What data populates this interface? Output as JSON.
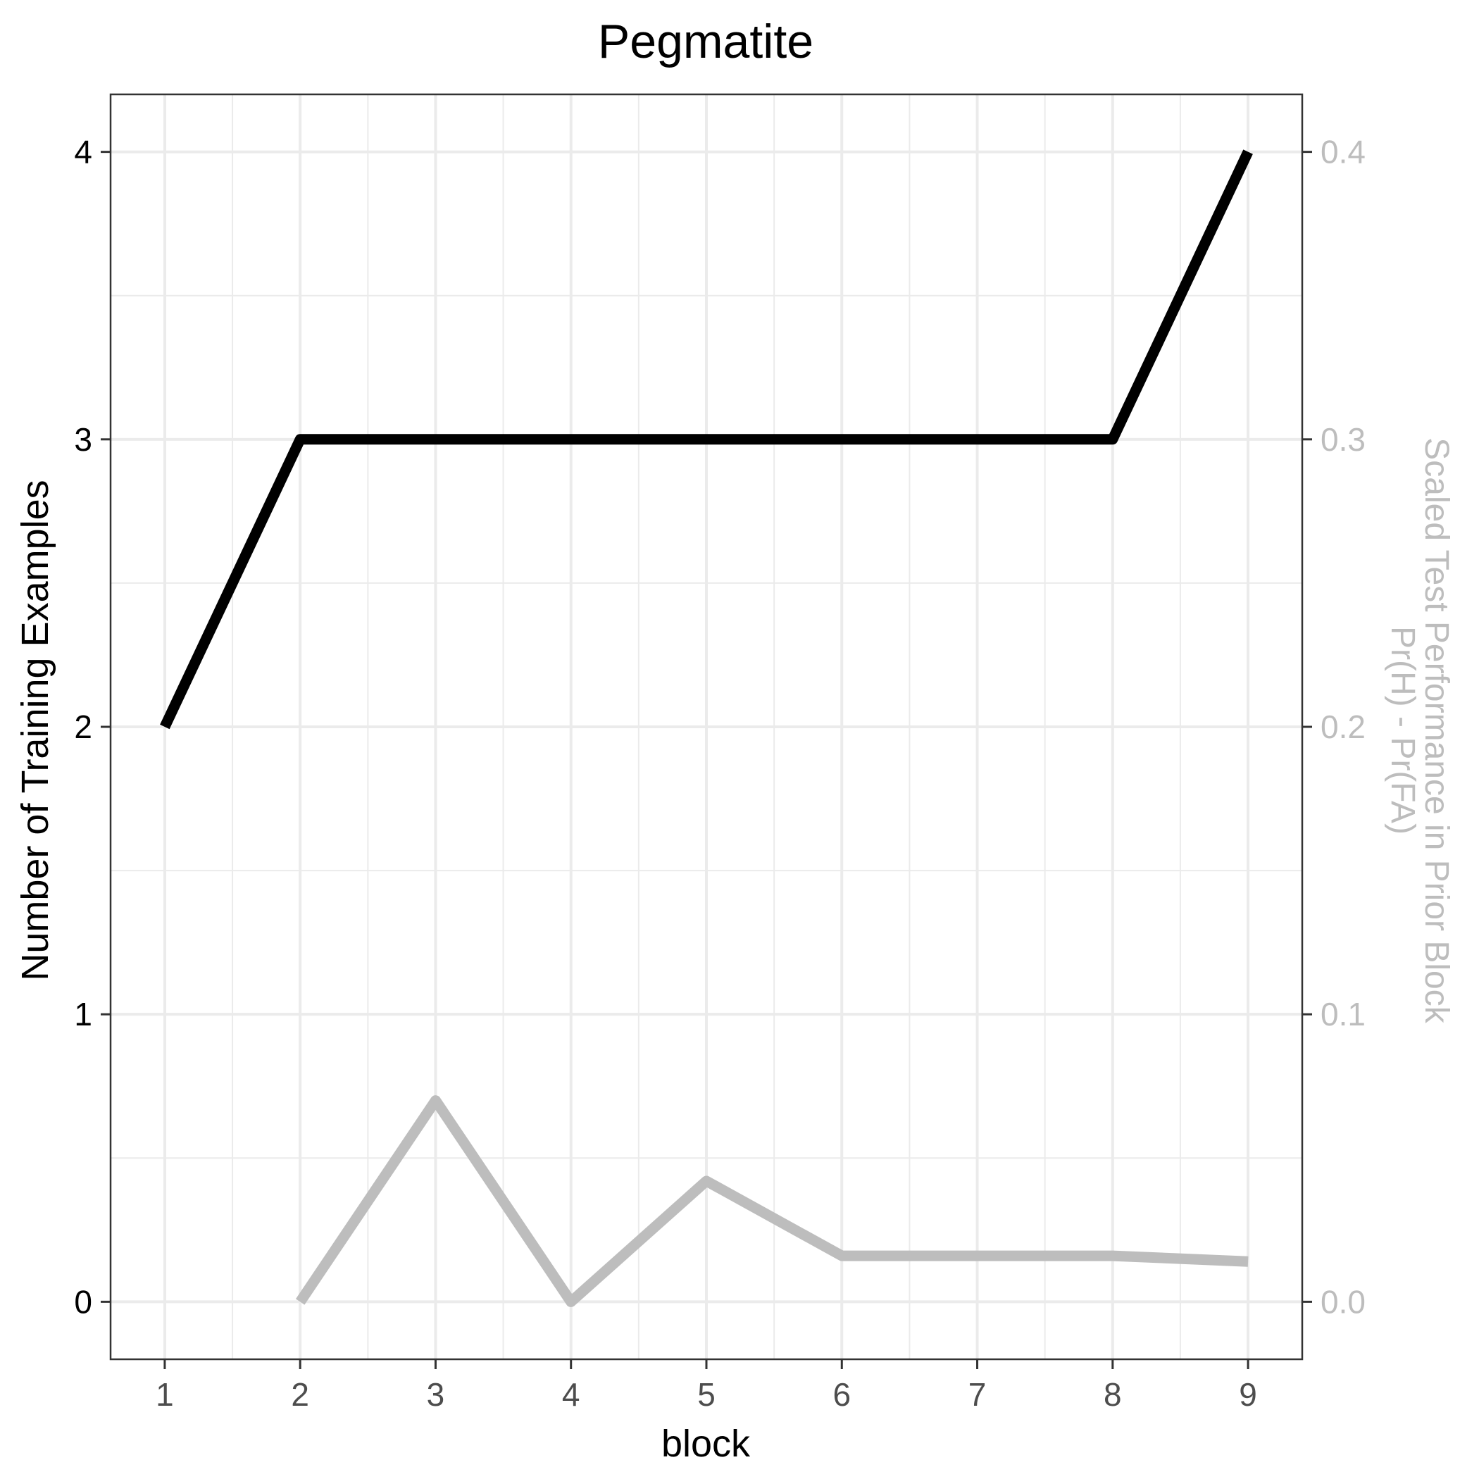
{
  "chart_data": {
    "type": "line",
    "title": "Pegmatite",
    "xlabel": "block",
    "ylabel": "Number of Training Examples",
    "ylabel_right": [
      "Scaled Test Performance in Prior Block",
      "Pr(H) - Pr(FA)"
    ],
    "x_ticks": [
      "1",
      "2",
      "3",
      "4",
      "5",
      "6",
      "7",
      "8",
      "9"
    ],
    "xlim": [
      0.6,
      9.4
    ],
    "ylim": [
      -0.2,
      4.2
    ],
    "y_ticks": [
      "0",
      "1",
      "2",
      "3",
      "4"
    ],
    "y2_ticks": [
      "0.0",
      "0.1",
      "0.2",
      "0.3",
      "0.4"
    ],
    "y2_scale": 10,
    "grid": true,
    "series": [
      {
        "axis": "left",
        "color": "#000000",
        "x": [
          1,
          2,
          3,
          4,
          5,
          6,
          7,
          8,
          9
        ],
        "values": [
          2,
          3,
          3,
          3,
          3,
          3,
          3,
          3,
          4
        ]
      },
      {
        "axis": "right",
        "color": "#bdbdbd",
        "x": [
          2,
          3,
          4,
          5,
          6,
          7,
          8,
          9
        ],
        "values": [
          0.0,
          0.07,
          0.0,
          0.042,
          0.016,
          0.016,
          0.016,
          0.014
        ]
      }
    ]
  }
}
